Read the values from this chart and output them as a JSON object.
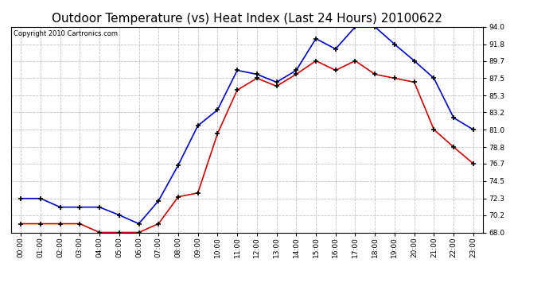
{
  "title": "Outdoor Temperature (vs) Heat Index (Last 24 Hours) 20100622",
  "copyright": "Copyright 2010 Cartronics.com",
  "x_labels": [
    "00:00",
    "01:00",
    "02:00",
    "03:00",
    "04:00",
    "05:00",
    "06:00",
    "07:00",
    "08:00",
    "09:00",
    "10:00",
    "11:00",
    "12:00",
    "13:00",
    "14:00",
    "15:00",
    "16:00",
    "17:00",
    "18:00",
    "19:00",
    "20:00",
    "21:00",
    "22:00",
    "23:00"
  ],
  "blue_data": [
    72.3,
    72.3,
    71.2,
    71.2,
    71.2,
    70.2,
    69.1,
    72.0,
    76.5,
    81.5,
    83.5,
    88.5,
    88.0,
    87.0,
    88.5,
    92.5,
    91.2,
    94.0,
    94.0,
    91.8,
    89.7,
    87.5,
    82.5,
    81.0
  ],
  "red_data": [
    69.1,
    69.1,
    69.1,
    69.1,
    68.0,
    68.0,
    68.0,
    69.1,
    72.5,
    73.0,
    80.5,
    86.0,
    87.5,
    86.5,
    88.0,
    89.7,
    88.5,
    89.7,
    88.0,
    87.5,
    87.0,
    81.0,
    78.8,
    76.7
  ],
  "ylim_min": 68.0,
  "ylim_max": 94.0,
  "yticks": [
    68.0,
    70.2,
    72.3,
    74.5,
    76.7,
    78.8,
    81.0,
    83.2,
    85.3,
    87.5,
    89.7,
    91.8,
    94.0
  ],
  "blue_color": "#0000CC",
  "red_color": "#CC0000",
  "bg_color": "#FFFFFF",
  "grid_color": "#C0C0C0",
  "title_fontsize": 11,
  "tick_fontsize": 6.5,
  "copyright_fontsize": 6
}
